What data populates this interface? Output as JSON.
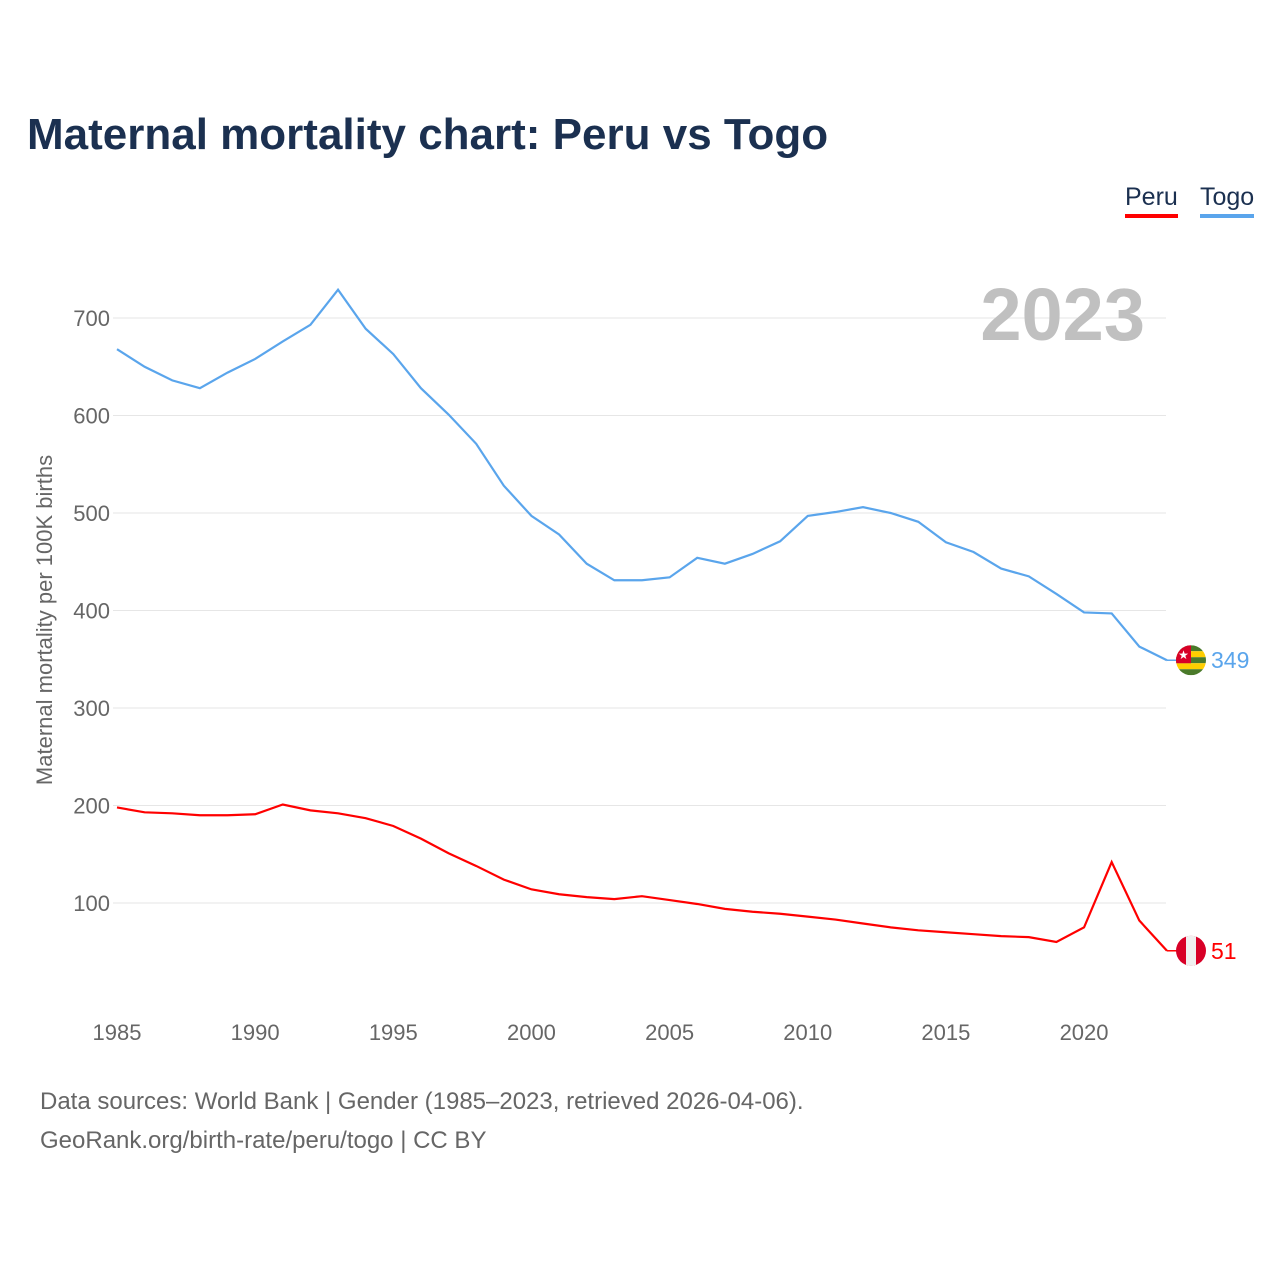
{
  "chart_data": {
    "type": "line",
    "title": "Maternal mortality chart: Peru vs Togo",
    "ylabel": "Maternal mortality per 100K births",
    "xlabel": "",
    "year_label": "2023",
    "ylim": [
      0,
      750
    ],
    "xlim": [
      1985,
      2023
    ],
    "yticks": [
      100,
      200,
      300,
      400,
      500,
      600,
      700
    ],
    "xticks": [
      1985,
      1990,
      1995,
      2000,
      2005,
      2010,
      2015,
      2020
    ],
    "grid": true,
    "legend_position": "top-right",
    "x": [
      1985,
      1986,
      1987,
      1988,
      1989,
      1990,
      1991,
      1992,
      1993,
      1994,
      1995,
      1996,
      1997,
      1998,
      1999,
      2000,
      2001,
      2002,
      2003,
      2004,
      2005,
      2006,
      2007,
      2008,
      2009,
      2010,
      2011,
      2012,
      2013,
      2014,
      2015,
      2016,
      2017,
      2018,
      2019,
      2020,
      2021,
      2022,
      2023
    ],
    "series": [
      {
        "name": "Peru",
        "color": "#ff0000",
        "end_label": "51",
        "values": [
          198,
          193,
          192,
          190,
          190,
          191,
          201,
          195,
          192,
          187,
          179,
          166,
          151,
          138,
          124,
          114,
          109,
          106,
          104,
          107,
          103,
          99,
          94,
          91,
          89,
          86,
          83,
          79,
          75,
          72,
          70,
          68,
          66,
          65,
          60,
          75,
          142,
          82,
          51
        ]
      },
      {
        "name": "Togo",
        "color": "#5aa5ec",
        "end_label": "349",
        "values": [
          668,
          650,
          636,
          628,
          644,
          658,
          676,
          693,
          729,
          689,
          663,
          628,
          601,
          571,
          528,
          497,
          478,
          448,
          431,
          431,
          434,
          454,
          448,
          458,
          471,
          497,
          501,
          506,
          500,
          491,
          470,
          460,
          443,
          435,
          417,
          398,
          397,
          363,
          349
        ]
      }
    ]
  },
  "footer": {
    "line1": "Data sources: World Bank | Gender (1985–2023, retrieved 2026-04-06).",
    "line2": "GeoRank.org/birth-rate/peru/togo | CC BY"
  }
}
